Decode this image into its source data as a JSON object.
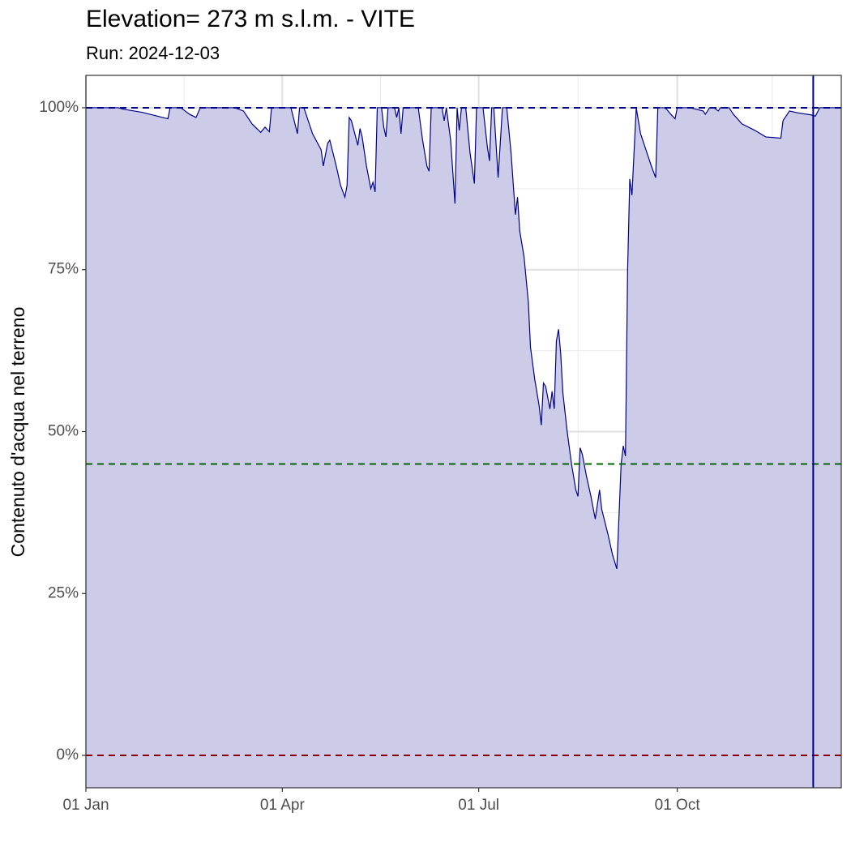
{
  "chart_data": {
    "type": "area",
    "title": "Elevation= 273 m s.l.m. - VITE",
    "subtitle": "Run: 2024-12-03",
    "y_label": "Contenuto d'acqua nel terreno",
    "xlim": [
      0,
      350
    ],
    "xticks": [
      {
        "value": 0,
        "label": "01 Jan"
      },
      {
        "value": 91,
        "label": "01 Apr"
      },
      {
        "value": 182,
        "label": "01 Jul"
      },
      {
        "value": 274,
        "label": "01 Oct"
      }
    ],
    "x_minor_ticks": [
      45.5,
      136.5,
      228,
      318
    ],
    "ylim": [
      -5,
      105
    ],
    "yticks": [
      {
        "value": 0,
        "label": "0%"
      },
      {
        "value": 25,
        "label": "25%"
      },
      {
        "value": 50,
        "label": "50%"
      },
      {
        "value": 75,
        "label": "75%"
      },
      {
        "value": 100,
        "label": "100%"
      }
    ],
    "y_minor_ticks": [
      12.5,
      37.5,
      62.5,
      87.5
    ],
    "grid": true,
    "series": [
      {
        "name": "Contenuto d'acqua",
        "color": "#00008b",
        "fill": "#cccce9",
        "x": [
          0,
          15,
          17,
          26,
          32,
          38,
          39,
          44,
          48,
          51,
          53,
          62,
          69,
          73,
          77,
          81,
          83,
          85,
          86,
          95,
          98,
          99,
          101,
          105,
          109,
          110,
          112,
          113,
          116,
          118,
          120,
          121,
          122,
          123,
          126,
          127,
          128,
          130,
          132,
          133,
          134,
          135,
          137,
          138,
          139,
          140,
          143,
          144,
          145,
          146,
          147,
          149,
          154,
          156,
          158,
          159,
          160,
          165,
          166,
          167,
          169,
          171,
          172,
          173,
          174,
          176,
          178,
          180,
          181,
          184,
          186,
          187,
          188,
          189,
          191,
          193,
          195,
          197,
          199,
          200,
          201,
          203,
          205,
          206,
          208,
          210,
          211,
          212,
          213,
          215,
          216,
          217,
          218,
          219,
          220,
          221,
          223,
          225,
          227,
          228,
          229,
          230,
          232,
          234,
          236,
          238,
          239,
          242,
          244,
          246,
          248,
          249,
          250,
          251,
          252,
          253,
          255,
          257,
          260,
          262,
          264,
          265,
          268,
          269,
          271,
          273,
          274,
          280,
          286,
          287,
          289,
          291,
          293,
          294,
          298,
          300,
          304,
          310,
          315,
          322,
          323,
          324,
          326,
          330,
          336,
          338,
          340,
          350
        ],
        "values": [
          100,
          100,
          99.8,
          99.3,
          98.8,
          98.3,
          100,
          100,
          99,
          98.5,
          100,
          100,
          100,
          99.5,
          97.5,
          96.2,
          97,
          96.3,
          100,
          100,
          96,
          100,
          100,
          96,
          93.5,
          91,
          94.5,
          95,
          91,
          88,
          86.2,
          88,
          98.5,
          98,
          94.2,
          96.8,
          95.5,
          91,
          87.5,
          88.5,
          87,
          100,
          100,
          97,
          95.5,
          100,
          100,
          98.5,
          100,
          96,
          100,
          100,
          100,
          95,
          91,
          90.2,
          100,
          100,
          98,
          100,
          95,
          85.2,
          100,
          96.5,
          100,
          100,
          93,
          88.3,
          100,
          100,
          94,
          91.8,
          100,
          100,
          89.2,
          100,
          100,
          93,
          83.5,
          86.2,
          81,
          77,
          70,
          63,
          58,
          54,
          51,
          57.5,
          57,
          53.5,
          56.2,
          53.5,
          64,
          65.8,
          62,
          56,
          50,
          45,
          41,
          40,
          47.5,
          46.5,
          43,
          40,
          36.5,
          41,
          38,
          34,
          31,
          28.8,
          45,
          47.8,
          46.2,
          75,
          89,
          86.5,
          100,
          96,
          93,
          91,
          89.2,
          100,
          100,
          99.8,
          99,
          98.3,
          100,
          100,
          99.5,
          99,
          100,
          100,
          99.5,
          100,
          100,
          99,
          97.5,
          96.5,
          95.5,
          95.3,
          98,
          98.5,
          99.5,
          99.2,
          98.9,
          98.7,
          100,
          100
        ]
      }
    ],
    "hlines": [
      {
        "value": 100,
        "color": "#00008b"
      },
      {
        "value": 45,
        "color": "#006400"
      },
      {
        "value": 0,
        "color": "#8b0000"
      }
    ],
    "vline": {
      "value": 337,
      "color": "#00008b"
    }
  }
}
